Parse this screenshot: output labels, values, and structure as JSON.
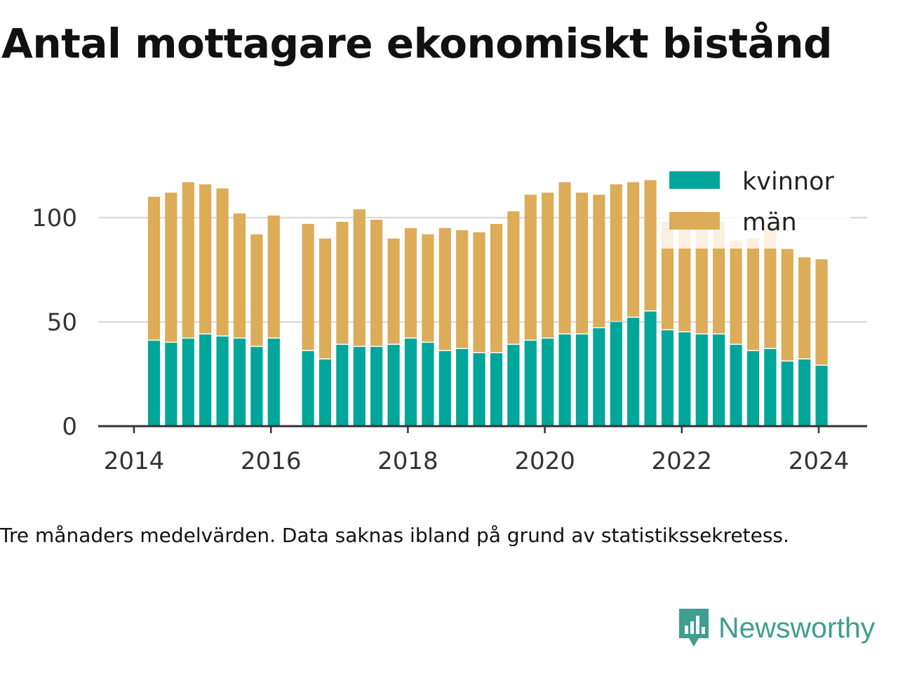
{
  "title": "Antal mottagare ekonomiskt bistånd",
  "note": "Tre månaders medelvärden. Data saknas ibland på grund av statistikssekretess.",
  "brand": {
    "name": "Newsworthy",
    "color": "#3f9e8d",
    "icon": "newsworthy-logo-icon"
  },
  "chart_data": {
    "type": "bar",
    "stacked": true,
    "title": "Antal mottagare ekonomiskt bistånd",
    "xlabel": "",
    "ylabel": "",
    "ylim": [
      0,
      120
    ],
    "y_ticks": [
      0,
      50,
      100
    ],
    "x_ticks": [
      "2014",
      "2016",
      "2018",
      "2020",
      "2022",
      "2024"
    ],
    "grid": true,
    "legend_position": "top-right",
    "x": [
      "2014-04",
      "2014-07",
      "2014-10",
      "2015-01",
      "2015-04",
      "2015-07",
      "2015-10",
      "2016-01",
      "2016-07",
      "2016-10",
      "2017-01",
      "2017-04",
      "2017-07",
      "2017-10",
      "2018-01",
      "2018-04",
      "2018-07",
      "2018-10",
      "2019-01",
      "2019-04",
      "2019-07",
      "2019-10",
      "2020-01",
      "2020-04",
      "2020-07",
      "2020-10",
      "2021-01",
      "2021-04",
      "2021-07",
      "2021-10",
      "2022-01",
      "2022-04",
      "2022-07",
      "2022-10",
      "2023-01",
      "2023-04",
      "2023-07",
      "2023-10",
      "2024-01"
    ],
    "series": [
      {
        "name": "kvinnor",
        "color": "#00a699",
        "values": [
          41,
          40,
          42,
          44,
          43,
          42,
          38,
          42,
          36,
          32,
          39,
          38,
          38,
          39,
          42,
          40,
          36,
          37,
          35,
          35,
          39,
          41,
          42,
          44,
          44,
          47,
          50,
          52,
          55,
          46,
          45,
          44,
          44,
          39,
          36,
          37,
          31,
          32,
          29
        ]
      },
      {
        "name": "män",
        "color": "#dcac59",
        "values": [
          69,
          72,
          75,
          72,
          71,
          60,
          54,
          59,
          61,
          58,
          59,
          66,
          61,
          51,
          53,
          52,
          59,
          57,
          58,
          62,
          64,
          70,
          70,
          73,
          68,
          64,
          66,
          65,
          63,
          52,
          50,
          52,
          54,
          50,
          54,
          58,
          54,
          49,
          51
        ]
      }
    ]
  }
}
